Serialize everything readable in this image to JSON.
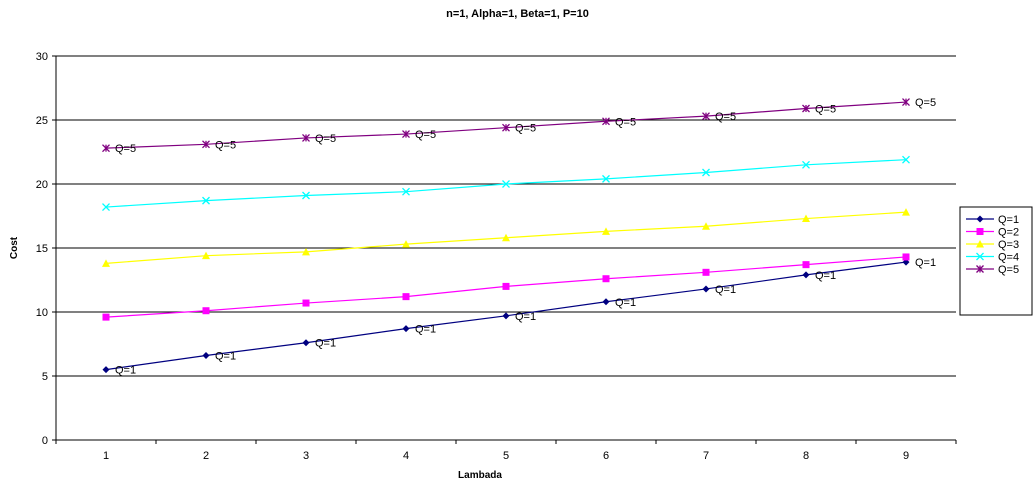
{
  "chart_data": {
    "type": "line",
    "title": "n=1, Alpha=1, Beta=1, P=10",
    "xlabel": "Lambada",
    "ylabel": "Cost",
    "categories": [
      "1",
      "2",
      "3",
      "4",
      "5",
      "6",
      "7",
      "8",
      "9"
    ],
    "ylim": [
      0,
      30
    ],
    "yticks": [
      0,
      5,
      10,
      15,
      20,
      25,
      30
    ],
    "grid": "horizontal",
    "legend_position": "right",
    "series": [
      {
        "name": "Q=1",
        "color": "#000080",
        "marker": "diamond",
        "values": [
          5.5,
          6.6,
          7.6,
          8.7,
          9.7,
          10.8,
          11.8,
          12.9,
          13.9
        ],
        "point_label": "Q=1"
      },
      {
        "name": "Q=2",
        "color": "#FF00FF",
        "marker": "square",
        "values": [
          9.6,
          10.1,
          10.7,
          11.2,
          12.0,
          12.6,
          13.1,
          13.7,
          14.3
        ]
      },
      {
        "name": "Q=3",
        "color": "#FFFF00",
        "marker": "triangle",
        "values": [
          13.8,
          14.4,
          14.7,
          15.3,
          15.8,
          16.3,
          16.7,
          17.3,
          17.8
        ]
      },
      {
        "name": "Q=4",
        "color": "#00FFFF",
        "marker": "x",
        "values": [
          18.2,
          18.7,
          19.1,
          19.4,
          20.0,
          20.4,
          20.9,
          21.5,
          21.9
        ]
      },
      {
        "name": "Q=5",
        "color": "#800080",
        "marker": "star",
        "values": [
          22.8,
          23.1,
          23.6,
          23.9,
          24.4,
          24.9,
          25.3,
          25.9,
          26.4
        ],
        "point_label": "Q=5"
      }
    ]
  }
}
